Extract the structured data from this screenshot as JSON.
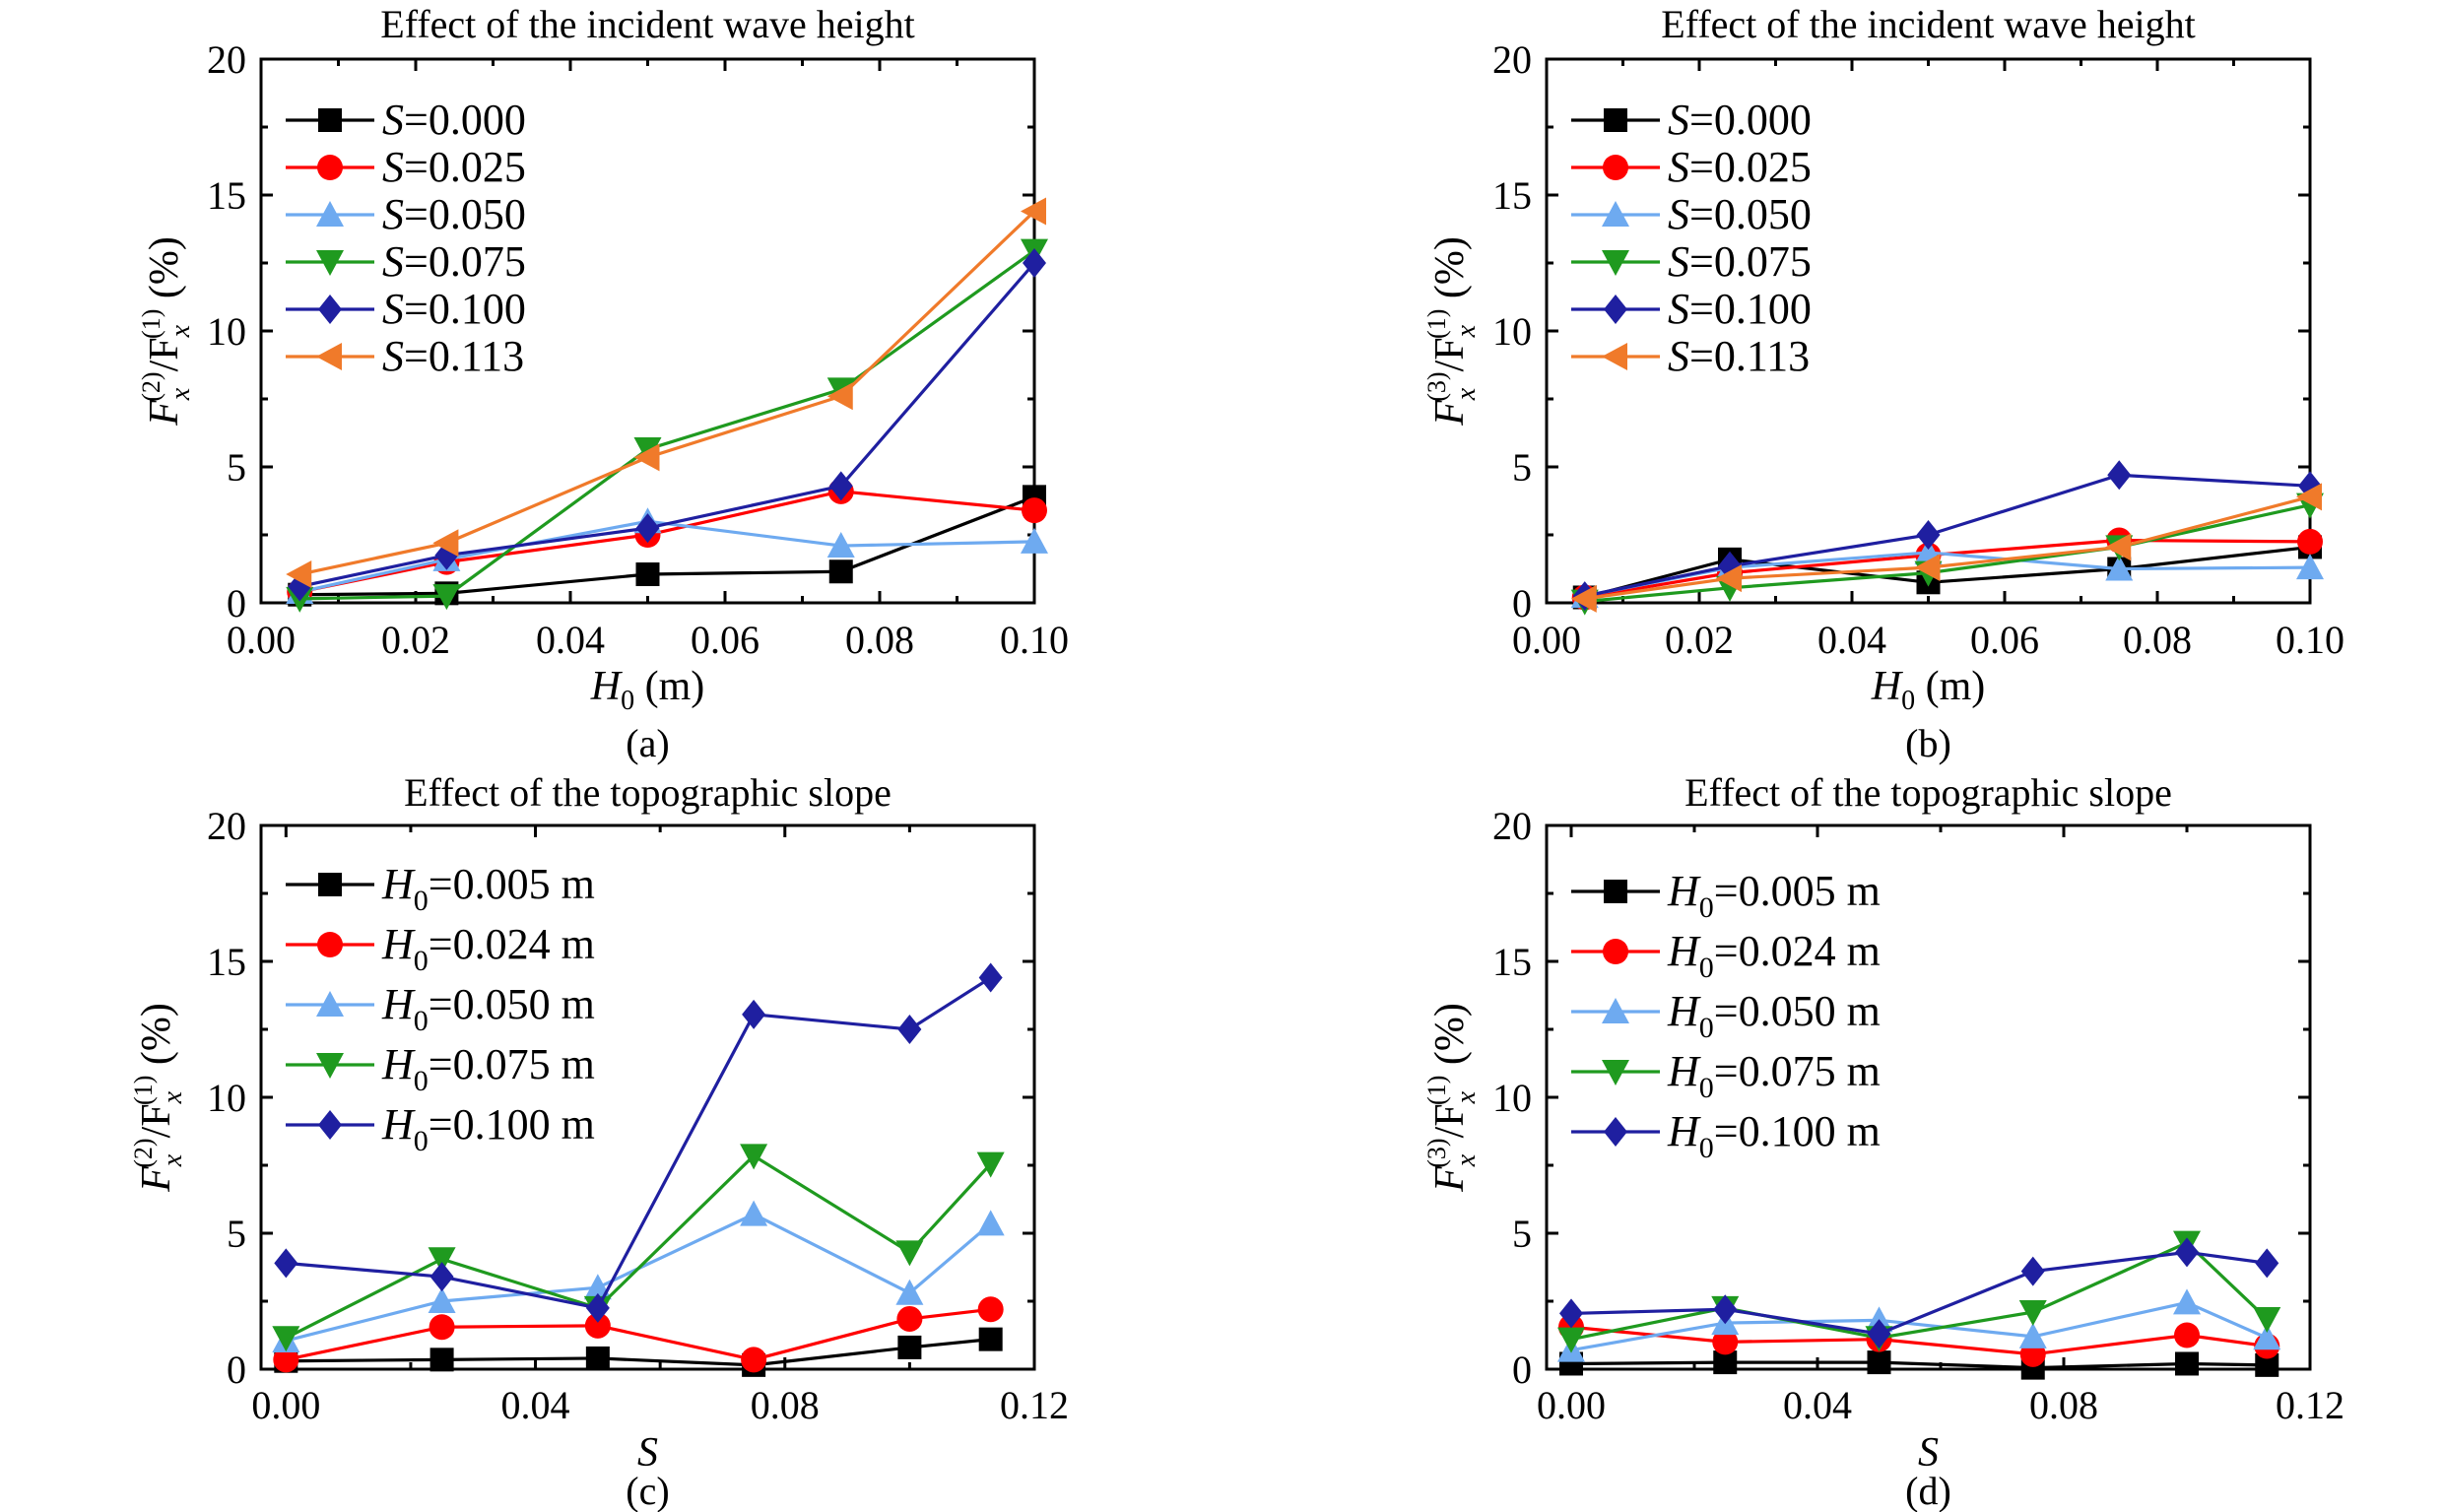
{
  "figure": {
    "panels": [
      {
        "id": "a",
        "caption": "(a)",
        "title": "Effect of the incident wave height",
        "ylabel": {
          "main": "F",
          "sub1": "x",
          "sup1": "(2)",
          "mid": "/F",
          "sub2": "x",
          "sup2": "(1)",
          "unit": " (%)"
        },
        "xlabel": {
          "main": "H",
          "sub": "0",
          "unit": " (m)"
        },
        "legend_prefix": {
          "main": "S",
          "sub": ""
        },
        "legend_suffix": ""
      },
      {
        "id": "b",
        "caption": "(b)",
        "title": "Effect of the incident wave height",
        "ylabel": {
          "main": "F",
          "sub1": "x",
          "sup1": "(3)",
          "mid": "/F",
          "sub2": "x",
          "sup2": "(1)",
          "unit": " (%)"
        },
        "xlabel": {
          "main": "H",
          "sub": "0",
          "unit": " (m)"
        },
        "legend_prefix": {
          "main": "S",
          "sub": ""
        },
        "legend_suffix": ""
      },
      {
        "id": "c",
        "caption": "(c)",
        "title": "Effect of the topographic slope",
        "ylabel": {
          "main": "F",
          "sub1": "x",
          "sup1": "(2)",
          "mid": "/F",
          "sub2": "x",
          "sup2": "(1)",
          "unit": " (%)"
        },
        "xlabel": {
          "main": "S",
          "sub": "",
          "unit": ""
        },
        "legend_prefix": {
          "main": "H",
          "sub": "0"
        },
        "legend_suffix": " m"
      },
      {
        "id": "d",
        "caption": "(d)",
        "title": "Effect of the topographic slope",
        "ylabel": {
          "main": "F",
          "sub1": "x",
          "sup1": "(3)",
          "mid": "/F",
          "sub2": "x",
          "sup2": "(1)",
          "unit": " (%)"
        },
        "xlabel": {
          "main": "S",
          "sub": "",
          "unit": ""
        },
        "legend_prefix": {
          "main": "H",
          "sub": "0"
        },
        "legend_suffix": " m"
      }
    ]
  },
  "chart_data": [
    {
      "type": "line",
      "title": "Effect of the incident wave height",
      "xlabel": "H0 (m)",
      "ylabel": "Fx(2)/Fx(1) (%)",
      "xlim": [
        0.0,
        0.1
      ],
      "ylim": [
        0,
        20
      ],
      "xticks": [
        "0.00",
        "0.02",
        "0.04",
        "0.06",
        "0.08",
        "0.10"
      ],
      "yticks": [
        "0",
        "5",
        "10",
        "15",
        "20"
      ],
      "legend_position": "top-left",
      "x": [
        0.005,
        0.024,
        0.05,
        0.075,
        0.1
      ],
      "series": [
        {
          "name": "=0.000",
          "color": "#000000",
          "marker": "square",
          "values": [
            0.3,
            0.35,
            1.05,
            1.15,
            3.9
          ]
        },
        {
          "name": "=0.025",
          "color": "#ff0000",
          "marker": "circle",
          "values": [
            0.4,
            1.5,
            2.5,
            4.1,
            3.4
          ]
        },
        {
          "name": "=0.050",
          "color": "#6eaaf0",
          "marker": "triangle-up",
          "values": [
            0.4,
            1.6,
            3.0,
            2.1,
            2.25
          ]
        },
        {
          "name": "=0.075",
          "color": "#1f9a1f",
          "marker": "triangle-down",
          "values": [
            0.15,
            0.25,
            5.65,
            7.85,
            12.95
          ]
        },
        {
          "name": "=0.100",
          "color": "#1f1fa0",
          "marker": "diamond",
          "values": [
            0.6,
            1.75,
            2.75,
            4.3,
            12.5
          ]
        },
        {
          "name": "=0.113",
          "color": "#f07a2a",
          "marker": "triangle-left",
          "values": [
            1.05,
            2.2,
            5.35,
            7.6,
            14.4
          ]
        }
      ]
    },
    {
      "type": "line",
      "title": "Effect of the incident wave height",
      "xlabel": "H0 (m)",
      "ylabel": "Fx(3)/Fx(1) (%)",
      "xlim": [
        0.0,
        0.1
      ],
      "ylim": [
        0,
        20
      ],
      "xticks": [
        "0.00",
        "0.02",
        "0.04",
        "0.06",
        "0.08",
        "0.10"
      ],
      "yticks": [
        "0",
        "5",
        "10",
        "15",
        "20"
      ],
      "legend_position": "top-left",
      "x": [
        0.005,
        0.024,
        0.05,
        0.075,
        0.1
      ],
      "series": [
        {
          "name": "=0.000",
          "color": "#000000",
          "marker": "square",
          "values": [
            0.2,
            1.6,
            0.75,
            1.25,
            2.05
          ]
        },
        {
          "name": "=0.025",
          "color": "#ff0000",
          "marker": "circle",
          "values": [
            0.2,
            1.1,
            1.75,
            2.3,
            2.25
          ]
        },
        {
          "name": "=0.050",
          "color": "#6eaaf0",
          "marker": "triangle-up",
          "values": [
            0.25,
            1.3,
            1.85,
            1.25,
            1.3
          ]
        },
        {
          "name": "=0.075",
          "color": "#1f9a1f",
          "marker": "triangle-down",
          "values": [
            0.05,
            0.55,
            1.1,
            2.05,
            3.6
          ]
        },
        {
          "name": "=0.100",
          "color": "#1f1fa0",
          "marker": "diamond",
          "values": [
            0.25,
            1.35,
            2.5,
            4.7,
            4.3
          ]
        },
        {
          "name": "=0.113",
          "color": "#f07a2a",
          "marker": "triangle-left",
          "values": [
            0.15,
            0.9,
            1.3,
            2.05,
            3.9
          ]
        }
      ]
    },
    {
      "type": "line",
      "title": "Effect of the topographic slope",
      "xlabel": "S",
      "ylabel": "Fx(2)/Fx(1) (%)",
      "xlim": [
        -0.004,
        0.12
      ],
      "ylim": [
        0,
        20
      ],
      "xticks": [
        "0.00",
        "0.04",
        "0.08",
        "0.12"
      ],
      "yticks": [
        "0",
        "5",
        "10",
        "15",
        "20"
      ],
      "legend_position": "top-left",
      "x": [
        0.0,
        0.025,
        0.05,
        0.075,
        0.1,
        0.113
      ],
      "series": [
        {
          "name": "=0.005",
          "color": "#000000",
          "marker": "square",
          "values": [
            0.3,
            0.35,
            0.4,
            0.15,
            0.8,
            1.1
          ]
        },
        {
          "name": "=0.024",
          "color": "#ff0000",
          "marker": "circle",
          "values": [
            0.35,
            1.55,
            1.6,
            0.35,
            1.85,
            2.2
          ]
        },
        {
          "name": "=0.050",
          "color": "#6eaaf0",
          "marker": "triangle-up",
          "values": [
            1.05,
            2.5,
            3.0,
            5.7,
            2.8,
            5.35
          ]
        },
        {
          "name": "=0.075",
          "color": "#1f9a1f",
          "marker": "triangle-down",
          "values": [
            1.15,
            4.05,
            2.25,
            7.85,
            4.3,
            7.55
          ]
        },
        {
          "name": "=0.100",
          "color": "#1f1fa0",
          "marker": "diamond",
          "values": [
            3.9,
            3.4,
            2.25,
            13.05,
            12.5,
            14.4
          ]
        }
      ]
    },
    {
      "type": "line",
      "title": "Effect of the topographic slope",
      "xlabel": "S",
      "ylabel": "Fx(3)/Fx(1) (%)",
      "xlim": [
        -0.004,
        0.12
      ],
      "ylim": [
        0,
        20
      ],
      "xticks": [
        "0.00",
        "0.04",
        "0.08",
        "0.12"
      ],
      "yticks": [
        "0",
        "5",
        "10",
        "15",
        "20"
      ],
      "legend_position": "top-left",
      "x": [
        0.0,
        0.025,
        0.05,
        0.075,
        0.1,
        0.113
      ],
      "series": [
        {
          "name": "=0.005",
          "color": "#000000",
          "marker": "square",
          "values": [
            0.2,
            0.25,
            0.25,
            0.05,
            0.2,
            0.15
          ]
        },
        {
          "name": "=0.024",
          "color": "#ff0000",
          "marker": "circle",
          "values": [
            1.55,
            1.0,
            1.1,
            0.55,
            1.25,
            0.85
          ]
        },
        {
          "name": "=0.050",
          "color": "#6eaaf0",
          "marker": "triangle-up",
          "values": [
            0.7,
            1.7,
            1.8,
            1.2,
            2.45,
            1.15
          ]
        },
        {
          "name": "=0.075",
          "color": "#1f9a1f",
          "marker": "triangle-down",
          "values": [
            1.1,
            2.25,
            1.15,
            2.1,
            4.65,
            1.85
          ]
        },
        {
          "name": "=0.100",
          "color": "#1f1fa0",
          "marker": "diamond",
          "values": [
            2.05,
            2.2,
            1.3,
            3.6,
            4.3,
            3.9
          ]
        }
      ]
    }
  ]
}
